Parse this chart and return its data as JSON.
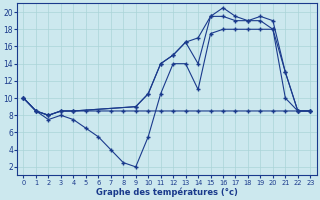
{
  "bg_color": "#cce8ee",
  "line_color": "#1a3a8c",
  "grid_color": "#aad4d8",
  "xlabel": "Graphe des températures (°c)",
  "xlim": [
    -0.5,
    23.5
  ],
  "ylim": [
    1,
    21
  ],
  "yticks": [
    2,
    4,
    6,
    8,
    10,
    12,
    14,
    16,
    18,
    20
  ],
  "xticks": [
    0,
    1,
    2,
    3,
    4,
    5,
    6,
    7,
    8,
    9,
    10,
    11,
    12,
    13,
    14,
    15,
    16,
    17,
    18,
    19,
    20,
    21,
    22,
    23
  ],
  "line_min_x": [
    0,
    1,
    2,
    3,
    4,
    5,
    6,
    7,
    8,
    9,
    10,
    11,
    12,
    13,
    14,
    15,
    16,
    17,
    18,
    19,
    20,
    21,
    22,
    23
  ],
  "line_min_y": [
    10,
    8.5,
    7.5,
    8,
    7.5,
    6.5,
    5.5,
    4,
    2.5,
    2,
    5.5,
    10.5,
    14,
    14,
    11,
    17.5,
    18,
    18,
    18,
    18,
    18,
    10,
    8.5,
    8.5
  ],
  "line_max_x": [
    0,
    1,
    2,
    3,
    4,
    9,
    10,
    11,
    12,
    13,
    14,
    15,
    16,
    17,
    18,
    19,
    20,
    21,
    22,
    23
  ],
  "line_max_y": [
    10,
    8.5,
    8,
    8.5,
    8.5,
    9,
    10.5,
    14,
    15,
    16.5,
    14,
    19.5,
    20.5,
    19.5,
    19,
    19.5,
    19,
    13,
    8.5,
    8.5
  ],
  "line_flat_x": [
    0,
    1,
    2,
    3,
    4,
    5,
    6,
    7,
    8,
    9,
    10,
    11,
    12,
    13,
    14,
    15,
    16,
    17,
    18,
    19,
    20,
    21,
    22,
    23
  ],
  "line_flat_y": [
    10,
    8.5,
    8,
    8.5,
    8.5,
    8.5,
    8.5,
    8.5,
    8.5,
    8.5,
    8.5,
    8.5,
    8.5,
    8.5,
    8.5,
    8.5,
    8.5,
    8.5,
    8.5,
    8.5,
    8.5,
    8.5,
    8.5,
    8.5
  ],
  "line_mid_x": [
    0,
    1,
    2,
    3,
    4,
    9,
    10,
    11,
    12,
    13,
    14,
    15,
    16,
    17,
    18,
    19,
    20,
    21,
    22,
    23
  ],
  "line_mid_y": [
    10,
    8.5,
    8,
    8.5,
    8.5,
    9,
    10.5,
    14,
    15,
    16.5,
    17,
    19.5,
    19.5,
    19,
    19,
    19,
    18,
    13,
    8.5,
    8.5
  ]
}
